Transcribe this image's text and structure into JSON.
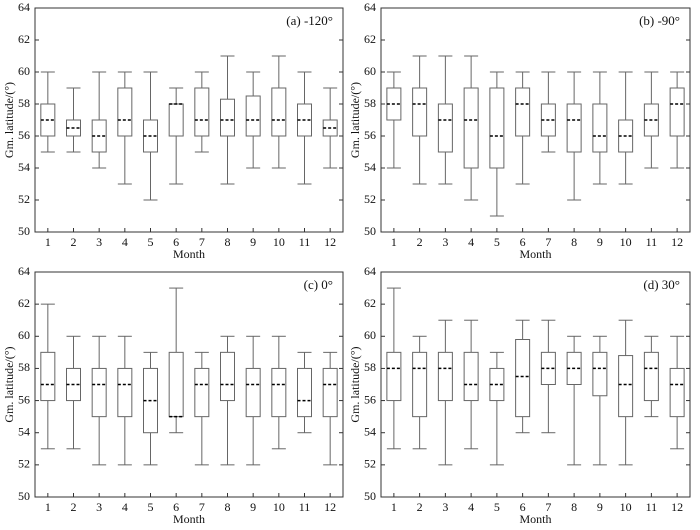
{
  "chart_data": [
    {
      "type": "box",
      "title": "(a) -120°",
      "x_label": "Month",
      "y_label": "Gm. latitude/(°)",
      "color": "#666666",
      "categories": [
        "1",
        "2",
        "3",
        "4",
        "5",
        "6",
        "7",
        "8",
        "9",
        "10",
        "11",
        "12"
      ],
      "boxes": [
        {
          "low": 55,
          "q1": 56,
          "median": 57,
          "q3": 58,
          "high": 60
        },
        {
          "low": 55,
          "q1": 56,
          "median": 56.5,
          "q3": 57,
          "high": 59
        },
        {
          "low": 54,
          "q1": 55,
          "median": 56,
          "q3": 57,
          "high": 60
        },
        {
          "low": 53,
          "q1": 56,
          "median": 57,
          "q3": 59,
          "high": 60
        },
        {
          "low": 52,
          "q1": 55,
          "median": 56,
          "q3": 57,
          "high": 60
        },
        {
          "low": 53,
          "q1": 56,
          "median": 58,
          "q3": 58,
          "high": 59
        },
        {
          "low": 55,
          "q1": 56,
          "median": 57,
          "q3": 59,
          "high": 60
        },
        {
          "low": 53,
          "q1": 56,
          "median": 57,
          "q3": 58.3,
          "high": 61
        },
        {
          "low": 54,
          "q1": 56,
          "median": 57,
          "q3": 58.5,
          "high": 60
        },
        {
          "low": 54,
          "q1": 56,
          "median": 57,
          "q3": 59,
          "high": 61
        },
        {
          "low": 53,
          "q1": 56,
          "median": 57,
          "q3": 58,
          "high": 60
        },
        {
          "low": 54,
          "q1": 56,
          "median": 56.5,
          "q3": 57,
          "high": 59
        }
      ],
      "ylim": [
        50,
        64
      ],
      "yticks": [
        50,
        52,
        54,
        56,
        58,
        60,
        62,
        64
      ]
    },
    {
      "type": "box",
      "title": "(b) -90°",
      "x_label": "Month",
      "y_label": "Gm. latitude/(°)",
      "color": "#666666",
      "categories": [
        "1",
        "2",
        "3",
        "4",
        "5",
        "6",
        "7",
        "8",
        "9",
        "10",
        "11",
        "12"
      ],
      "boxes": [
        {
          "low": 54,
          "q1": 57,
          "median": 58,
          "q3": 59,
          "high": 60
        },
        {
          "low": 53,
          "q1": 56,
          "median": 58,
          "q3": 59,
          "high": 61
        },
        {
          "low": 53,
          "q1": 55,
          "median": 57,
          "q3": 58,
          "high": 61
        },
        {
          "low": 52,
          "q1": 54,
          "median": 57,
          "q3": 59,
          "high": 61
        },
        {
          "low": 51,
          "q1": 54,
          "median": 56,
          "q3": 59,
          "high": 60
        },
        {
          "low": 53,
          "q1": 56,
          "median": 58,
          "q3": 59,
          "high": 60
        },
        {
          "low": 55,
          "q1": 56,
          "median": 57,
          "q3": 58,
          "high": 60
        },
        {
          "low": 52,
          "q1": 55,
          "median": 57,
          "q3": 58,
          "high": 60
        },
        {
          "low": 53,
          "q1": 55,
          "median": 56,
          "q3": 58,
          "high": 60
        },
        {
          "low": 53,
          "q1": 55,
          "median": 56,
          "q3": 57,
          "high": 60
        },
        {
          "low": 54,
          "q1": 56,
          "median": 57,
          "q3": 58,
          "high": 60
        },
        {
          "low": 54,
          "q1": 56,
          "median": 58,
          "q3": 59,
          "high": 60
        }
      ],
      "ylim": [
        50,
        64
      ],
      "yticks": [
        50,
        52,
        54,
        56,
        58,
        60,
        62,
        64
      ]
    },
    {
      "type": "box",
      "title": "(c) 0°",
      "x_label": "Month",
      "y_label": "Gm. latitude/(°)",
      "color": "#666666",
      "categories": [
        "1",
        "2",
        "3",
        "4",
        "5",
        "6",
        "7",
        "8",
        "9",
        "10",
        "11",
        "12"
      ],
      "boxes": [
        {
          "low": 53,
          "q1": 56,
          "median": 57,
          "q3": 59,
          "high": 62
        },
        {
          "low": 53,
          "q1": 56,
          "median": 57,
          "q3": 58,
          "high": 60
        },
        {
          "low": 52,
          "q1": 55,
          "median": 57,
          "q3": 58,
          "high": 60
        },
        {
          "low": 52,
          "q1": 55,
          "median": 57,
          "q3": 58,
          "high": 60
        },
        {
          "low": 52,
          "q1": 54,
          "median": 56,
          "q3": 58,
          "high": 59
        },
        {
          "low": 54,
          "q1": 55,
          "median": 55,
          "q3": 59,
          "high": 63
        },
        {
          "low": 52,
          "q1": 55,
          "median": 57,
          "q3": 58,
          "high": 59
        },
        {
          "low": 52,
          "q1": 56,
          "median": 57,
          "q3": 59,
          "high": 60
        },
        {
          "low": 52,
          "q1": 55,
          "median": 57,
          "q3": 58,
          "high": 60
        },
        {
          "low": 53,
          "q1": 55,
          "median": 57,
          "q3": 58,
          "high": 60
        },
        {
          "low": 54,
          "q1": 55,
          "median": 56,
          "q3": 58,
          "high": 59
        },
        {
          "low": 52,
          "q1": 55,
          "median": 57,
          "q3": 58,
          "high": 59
        }
      ],
      "ylim": [
        50,
        64
      ],
      "yticks": [
        50,
        52,
        54,
        56,
        58,
        60,
        62,
        64
      ]
    },
    {
      "type": "box",
      "title": "(d) 30°",
      "x_label": "Month",
      "y_label": "Gm. latitude/(°)",
      "color": "#666666",
      "categories": [
        "1",
        "2",
        "3",
        "4",
        "5",
        "6",
        "7",
        "8",
        "9",
        "10",
        "11",
        "12"
      ],
      "boxes": [
        {
          "low": 53,
          "q1": 56,
          "median": 58,
          "q3": 59,
          "high": 63
        },
        {
          "low": 53,
          "q1": 55,
          "median": 58,
          "q3": 59,
          "high": 60
        },
        {
          "low": 52,
          "q1": 56,
          "median": 58,
          "q3": 59,
          "high": 61
        },
        {
          "low": 53,
          "q1": 56,
          "median": 57,
          "q3": 59,
          "high": 61
        },
        {
          "low": 52,
          "q1": 56,
          "median": 57,
          "q3": 58,
          "high": 59
        },
        {
          "low": 54,
          "q1": 55,
          "median": 57.5,
          "q3": 59.8,
          "high": 61
        },
        {
          "low": 54,
          "q1": 57,
          "median": 58,
          "q3": 59,
          "high": 61
        },
        {
          "low": 52,
          "q1": 57,
          "median": 58,
          "q3": 59,
          "high": 60
        },
        {
          "low": 52,
          "q1": 56.3,
          "median": 58,
          "q3": 59,
          "high": 60
        },
        {
          "low": 52,
          "q1": 55,
          "median": 57,
          "q3": 58.8,
          "high": 61
        },
        {
          "low": 55,
          "q1": 56,
          "median": 58,
          "q3": 59,
          "high": 60
        },
        {
          "low": 53,
          "q1": 55,
          "median": 57,
          "q3": 58,
          "high": 60
        }
      ],
      "ylim": [
        50,
        64
      ],
      "yticks": [
        50,
        52,
        54,
        56,
        58,
        60,
        62,
        64
      ]
    }
  ]
}
